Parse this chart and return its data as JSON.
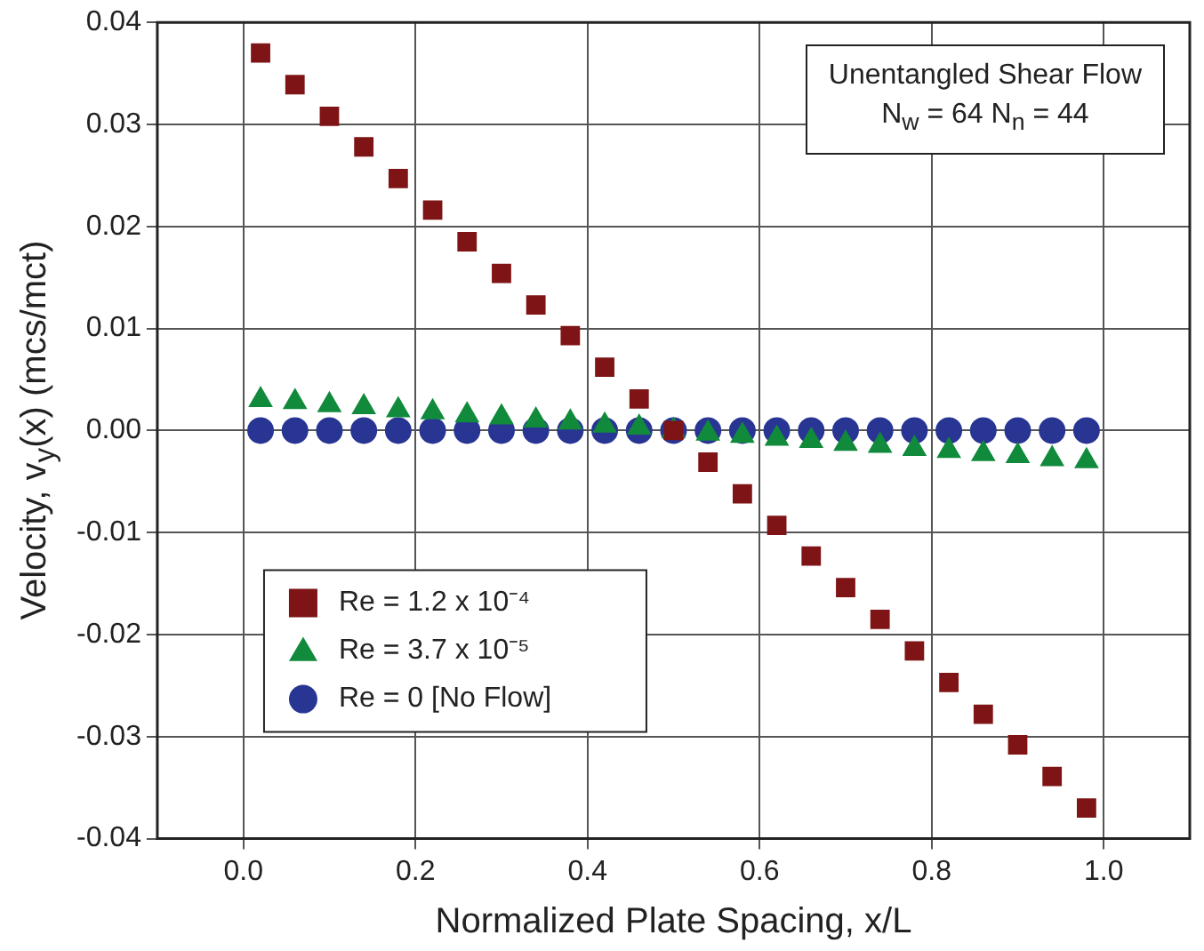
{
  "chart_data": {
    "type": "scatter",
    "xlabel": "Normalized Plate Spacing, x/L",
    "ylabel": "Velocity, v$_{y}$(x) (mcs/mct)",
    "annotations": [
      "Unentangled Shear Flow",
      "N$_{w}$ = 64 N$_{n}$ = 44"
    ],
    "x": [
      0.02,
      0.06,
      0.1,
      0.14,
      0.18,
      0.22,
      0.26,
      0.3,
      0.34,
      0.38,
      0.42,
      0.46,
      0.5,
      0.54,
      0.58,
      0.62,
      0.66,
      0.7,
      0.74,
      0.78,
      0.82,
      0.86,
      0.9,
      0.94,
      0.98
    ],
    "series": [
      {
        "name": "Re = 1.2 x 10⁻⁴",
        "color": "#7f1416",
        "marker": "square",
        "values": [
          0.037,
          0.0339,
          0.0308,
          0.0278,
          0.0247,
          0.0216,
          0.0185,
          0.0154,
          0.0123,
          0.0093,
          0.0062,
          0.0031,
          0,
          -0.0031,
          -0.0062,
          -0.0093,
          -0.0123,
          -0.0154,
          -0.0185,
          -0.0216,
          -0.0247,
          -0.0278,
          -0.0308,
          -0.0339,
          -0.037
        ]
      },
      {
        "name": "Re = 3.7 x 10⁻⁵",
        "color": "#118a3c",
        "marker": "triangle",
        "values": [
          0.003,
          0.0028,
          0.0025,
          0.0023,
          0.002,
          0.0018,
          0.0015,
          0.0013,
          0.001,
          0.0008,
          0.0005,
          0.0003,
          0,
          -0.0003,
          -0.0005,
          -0.0008,
          -0.001,
          -0.0013,
          -0.0015,
          -0.0018,
          -0.002,
          -0.0023,
          -0.0025,
          -0.0028,
          -0.003
        ]
      },
      {
        "name": "Re = 0 [No Flow]",
        "color": "#283593",
        "marker": "circle",
        "values": [
          0,
          0,
          0,
          0,
          0,
          0,
          0,
          0,
          0,
          0,
          0,
          0,
          0,
          0,
          0,
          0,
          0,
          0,
          0,
          0,
          0,
          0,
          0,
          0,
          0
        ]
      }
    ],
    "xlim": [
      -0.1,
      1.1
    ],
    "xticks": [
      {
        "value": 0,
        "label": "0.0"
      },
      0.2,
      0.4,
      0.6,
      0.8,
      {
        "value": 1,
        "label": "1.0"
      }
    ],
    "ylim": [
      -0.04,
      0.04
    ],
    "yticks": [
      -0.04,
      -0.03,
      -0.02,
      -0.01,
      {
        "value": 0,
        "label": "0.00"
      },
      0.01,
      0.02,
      0.03,
      0.04
    ],
    "grid": true,
    "legend": "bottom left"
  }
}
